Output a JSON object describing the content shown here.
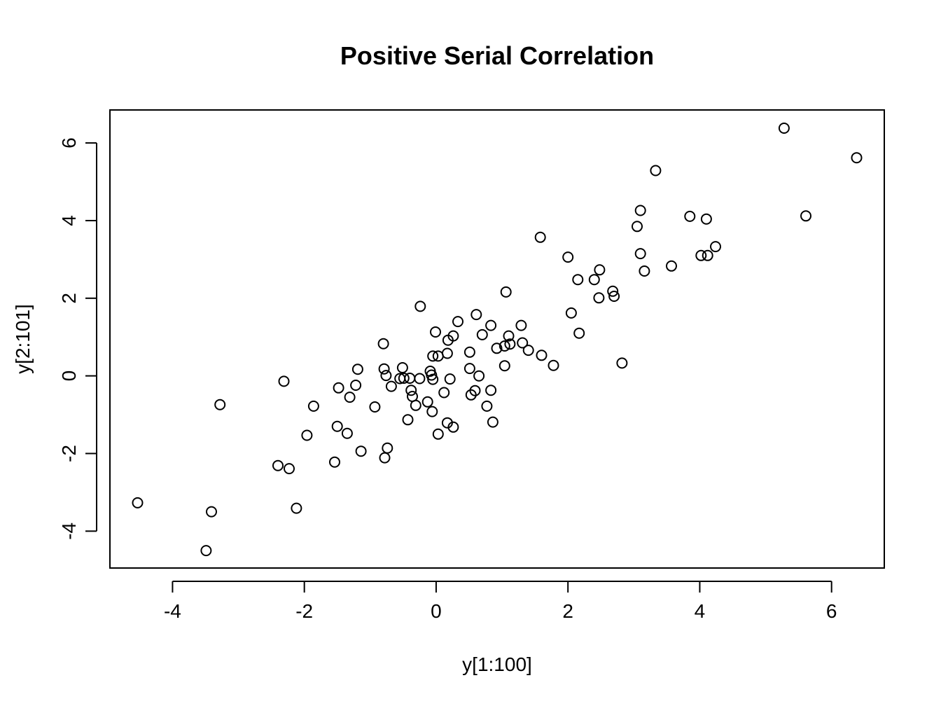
{
  "chart_data": {
    "type": "scatter",
    "title": "Positive Serial Correlation",
    "xlabel": "y[1:100]",
    "ylabel": "y[2:101]",
    "xlim": [
      -4.95,
      6.8
    ],
    "ylim": [
      -4.95,
      6.85
    ],
    "xticks": [
      -4,
      -2,
      0,
      2,
      4,
      6
    ],
    "yticks": [
      -4,
      -2,
      0,
      2,
      4,
      6
    ],
    "xtick_labels": [
      "-4",
      "-2",
      "0",
      "2",
      "4",
      "6"
    ],
    "ytick_labels": [
      "-4",
      "-2",
      "0",
      "2",
      "4",
      "6"
    ],
    "grid": false,
    "marker": "open-circle",
    "marker_color": "#000000",
    "points": [
      [
        5.28,
        6.38
      ],
      [
        6.38,
        5.62
      ],
      [
        5.61,
        4.12
      ],
      [
        3.33,
        5.29
      ],
      [
        3.1,
        4.26
      ],
      [
        3.85,
        4.11
      ],
      [
        4.1,
        4.04
      ],
      [
        3.05,
        3.85
      ],
      [
        1.58,
        3.57
      ],
      [
        4.24,
        3.33
      ],
      [
        3.1,
        3.15
      ],
      [
        4.02,
        3.1
      ],
      [
        4.12,
        3.1
      ],
      [
        2.0,
        3.06
      ],
      [
        3.57,
        2.83
      ],
      [
        2.48,
        2.73
      ],
      [
        3.16,
        2.7
      ],
      [
        2.15,
        2.48
      ],
      [
        2.4,
        2.48
      ],
      [
        2.68,
        2.18
      ],
      [
        1.06,
        2.16
      ],
      [
        2.7,
        2.05
      ],
      [
        2.47,
        2.01
      ],
      [
        -0.24,
        1.79
      ],
      [
        2.05,
        1.62
      ],
      [
        0.61,
        1.58
      ],
      [
        0.33,
        1.4
      ],
      [
        0.83,
        1.3
      ],
      [
        1.29,
        1.3
      ],
      [
        -0.01,
        1.13
      ],
      [
        2.17,
        1.1
      ],
      [
        0.7,
        1.06
      ],
      [
        0.26,
        1.03
      ],
      [
        1.1,
        1.03
      ],
      [
        0.18,
        0.92
      ],
      [
        1.31,
        0.85
      ],
      [
        -0.8,
        0.83
      ],
      [
        1.12,
        0.82
      ],
      [
        1.04,
        0.77
      ],
      [
        0.92,
        0.71
      ],
      [
        1.4,
        0.66
      ],
      [
        0.51,
        0.61
      ],
      [
        0.17,
        0.58
      ],
      [
        1.6,
        0.53
      ],
      [
        -0.05,
        0.51
      ],
      [
        0.03,
        0.51
      ],
      [
        1.78,
        0.27
      ],
      [
        1.04,
        0.26
      ],
      [
        2.82,
        0.33
      ],
      [
        -0.79,
        0.18
      ],
      [
        -1.19,
        0.17
      ],
      [
        -0.51,
        0.21
      ],
      [
        0.51,
        0.19
      ],
      [
        -0.09,
        0.12
      ],
      [
        -0.76,
        0.01
      ],
      [
        -0.07,
        0.02
      ],
      [
        0.65,
        0.0
      ],
      [
        -0.55,
        -0.07
      ],
      [
        -0.25,
        -0.07
      ],
      [
        -0.49,
        -0.06
      ],
      [
        0.21,
        -0.08
      ],
      [
        -0.4,
        -0.06
      ],
      [
        -0.05,
        -0.09
      ],
      [
        -2.31,
        -0.14
      ],
      [
        -1.22,
        -0.24
      ],
      [
        -0.68,
        -0.27
      ],
      [
        -1.48,
        -0.31
      ],
      [
        -0.38,
        -0.37
      ],
      [
        0.59,
        -0.38
      ],
      [
        0.83,
        -0.37
      ],
      [
        0.12,
        -0.43
      ],
      [
        -1.31,
        -0.55
      ],
      [
        -0.36,
        -0.53
      ],
      [
        0.53,
        -0.49
      ],
      [
        -0.13,
        -0.67
      ],
      [
        -3.28,
        -0.74
      ],
      [
        -0.31,
        -0.76
      ],
      [
        -1.86,
        -0.78
      ],
      [
        -0.93,
        -0.8
      ],
      [
        0.77,
        -0.78
      ],
      [
        -0.06,
        -0.92
      ],
      [
        -0.43,
        -1.13
      ],
      [
        0.86,
        -1.19
      ],
      [
        0.17,
        -1.21
      ],
      [
        -1.5,
        -1.3
      ],
      [
        0.26,
        -1.32
      ],
      [
        -1.35,
        -1.48
      ],
      [
        0.03,
        -1.5
      ],
      [
        -1.96,
        -1.53
      ],
      [
        -0.74,
        -1.86
      ],
      [
        -1.14,
        -1.94
      ],
      [
        -0.78,
        -2.11
      ],
      [
        -1.54,
        -2.22
      ],
      [
        -2.4,
        -2.31
      ],
      [
        -2.23,
        -2.39
      ],
      [
        -4.53,
        -3.27
      ],
      [
        -2.12,
        -3.41
      ],
      [
        -3.41,
        -3.5
      ],
      [
        -3.49,
        -4.5
      ]
    ]
  }
}
